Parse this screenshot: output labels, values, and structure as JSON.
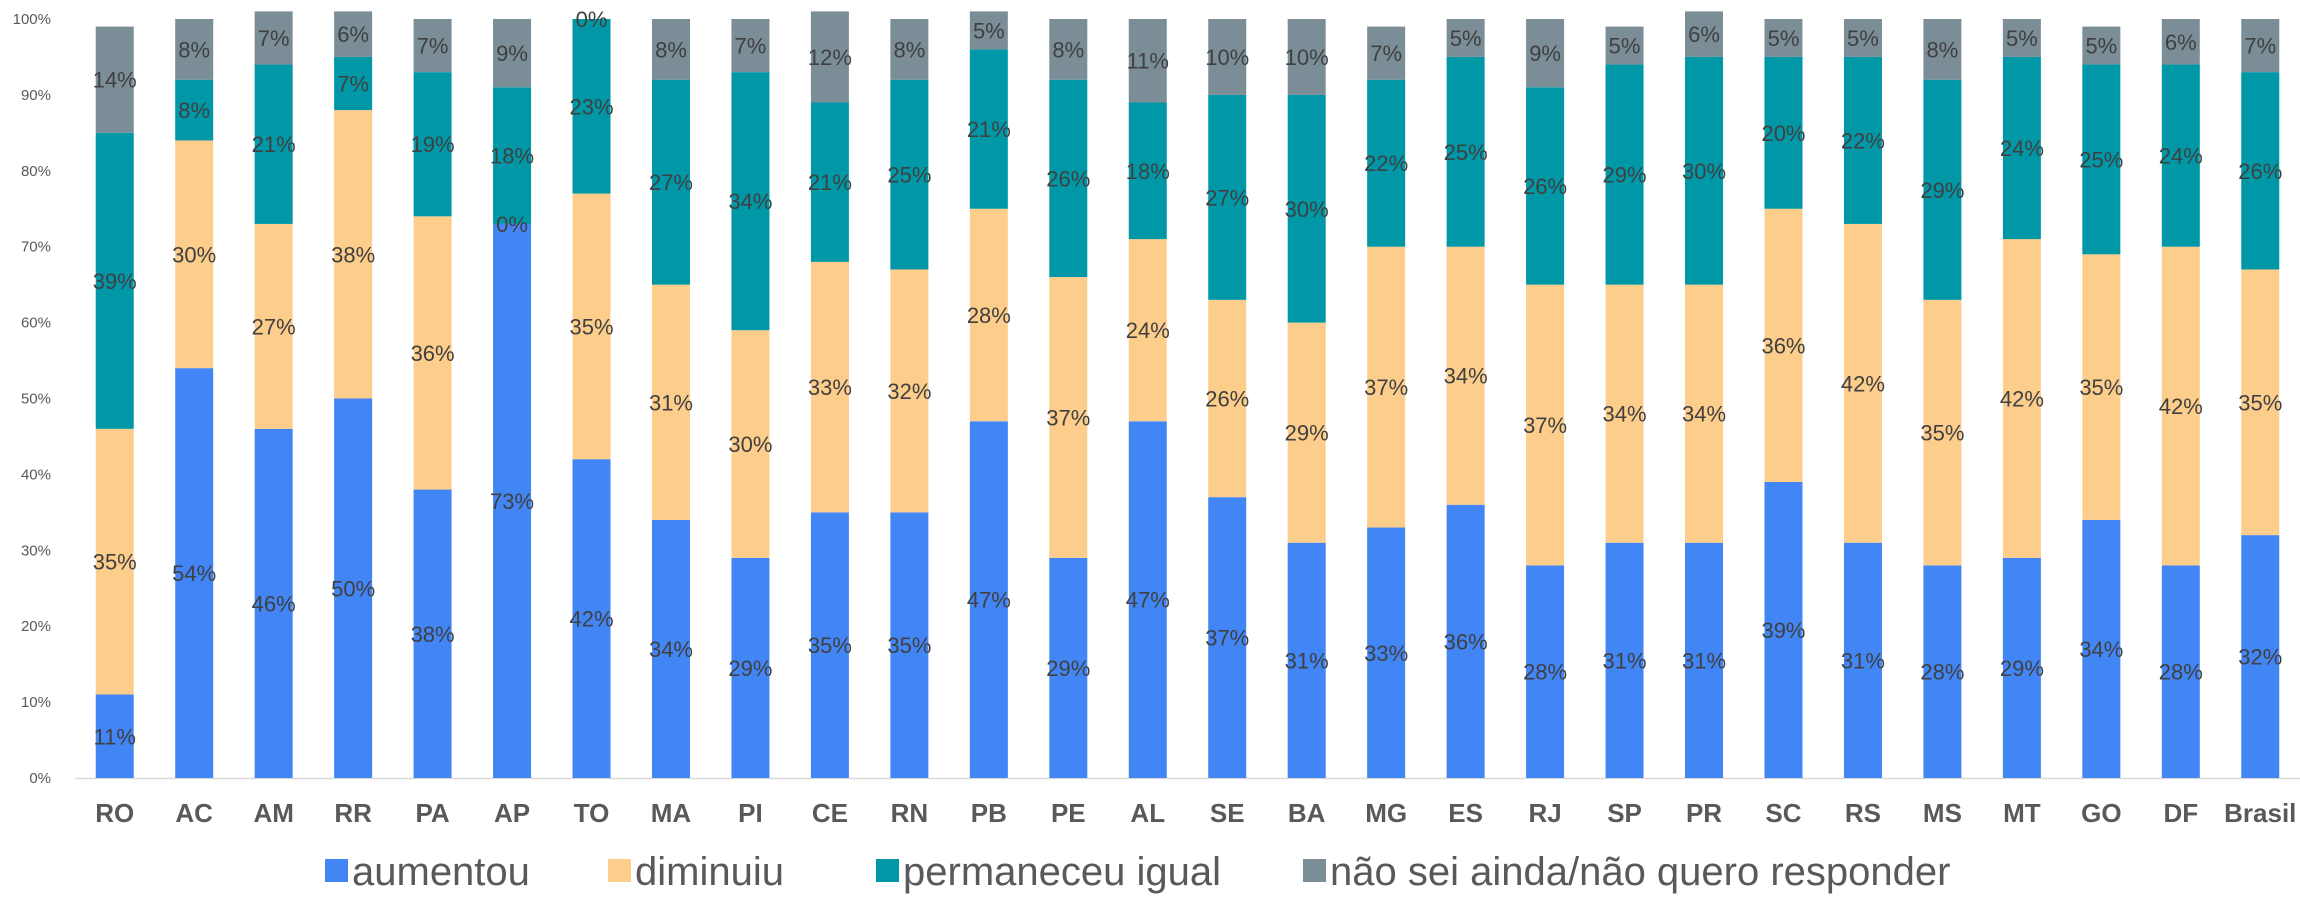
{
  "chart_data": {
    "type": "bar",
    "stacked": true,
    "percent_stacked": true,
    "categories": [
      "RO",
      "AC",
      "AM",
      "RR",
      "PA",
      "AP",
      "TO",
      "MA",
      "PI",
      "CE",
      "RN",
      "PB",
      "PE",
      "AL",
      "SE",
      "BA",
      "MG",
      "ES",
      "RJ",
      "SP",
      "PR",
      "SC",
      "RS",
      "MS",
      "MT",
      "GO",
      "DF",
      "Brasil"
    ],
    "series": [
      {
        "name": "aumentou",
        "color": "#4285f4",
        "values": [
          11,
          54,
          46,
          50,
          38,
          73,
          42,
          34,
          29,
          35,
          35,
          47,
          29,
          47,
          37,
          31,
          33,
          36,
          28,
          31,
          31,
          39,
          31,
          28,
          29,
          34,
          28,
          32
        ],
        "labels": [
          "11%",
          "54%",
          "46%",
          "50%",
          "38%",
          "73%",
          "42%",
          "34%",
          "29%",
          "35%",
          "35%",
          "47%",
          "29%",
          "47%",
          "37%",
          "31%",
          "33%",
          "36%",
          "28%",
          "31%",
          "31%",
          "39%",
          "31%",
          "28%",
          "29%",
          "34%",
          "28%",
          "32%"
        ]
      },
      {
        "name": "diminuiu",
        "color": "#fdcd8c",
        "values": [
          35,
          30,
          27,
          38,
          36,
          0,
          35,
          31,
          30,
          33,
          32,
          28,
          37,
          24,
          26,
          29,
          37,
          34,
          37,
          34,
          34,
          36,
          42,
          35,
          42,
          35,
          42,
          35
        ],
        "labels": [
          "35%",
          "30%",
          "27%",
          "38%",
          "36%",
          "0%",
          "35%",
          "31%",
          "30%",
          "33%",
          "32%",
          "28%",
          "37%",
          "24%",
          "26%",
          "29%",
          "37%",
          "34%",
          "37%",
          "34%",
          "34%",
          "36%",
          "42%",
          "35%",
          "42%",
          "35%",
          "42%",
          "35%"
        ]
      },
      {
        "name": "permaneceu igual",
        "color": "#0097a7",
        "values": [
          39,
          8,
          21,
          7,
          19,
          18,
          23,
          27,
          34,
          21,
          25,
          21,
          26,
          18,
          27,
          30,
          22,
          25,
          26,
          29,
          30,
          20,
          22,
          29,
          24,
          25,
          24,
          26
        ],
        "labels": [
          "39%",
          "8%",
          "21%",
          "7%",
          "19%",
          "18%",
          "23%",
          "27%",
          "34%",
          "21%",
          "25%",
          "21%",
          "26%",
          "18%",
          "27%",
          "30%",
          "22%",
          "25%",
          "26%",
          "29%",
          "30%",
          "20%",
          "22%",
          "29%",
          "24%",
          "25%",
          "24%",
          "26%"
        ]
      },
      {
        "name": "não sei ainda/não quero responder",
        "color": "#7b8d97",
        "values": [
          14,
          8,
          7,
          6,
          7,
          9,
          0,
          8,
          7,
          12,
          8,
          5,
          8,
          11,
          10,
          10,
          7,
          5,
          9,
          5,
          6,
          5,
          5,
          8,
          5,
          5,
          6,
          7
        ],
        "labels": [
          "14%",
          "8%",
          "7%",
          "6%",
          "7%",
          "9%",
          "0%",
          "8%",
          "7%",
          "12%",
          "8%",
          "5%",
          "8%",
          "11%",
          "10%",
          "10%",
          "7%",
          "5%",
          "9%",
          "5%",
          "6%",
          "5%",
          "5%",
          "8%",
          "5%",
          "5%",
          "6%",
          "7%"
        ]
      }
    ],
    "ylim": [
      0,
      100
    ],
    "yticks": [
      "0%",
      "10%",
      "20%",
      "30%",
      "40%",
      "50%",
      "60%",
      "70%",
      "80%",
      "90%",
      "100%"
    ],
    "grid": false,
    "legend_position": "bottom",
    "title": "",
    "xlabel": "",
    "ylabel": ""
  }
}
